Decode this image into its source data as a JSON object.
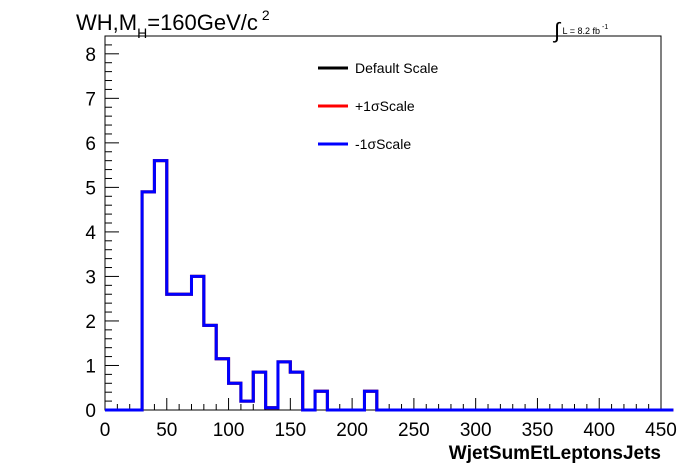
{
  "chart_data": {
    "type": "line",
    "title_parts": {
      "main": "WH,M",
      "sub": "H",
      "rest": "=160GeV/c",
      "sup": "2"
    },
    "lumi_label": {
      "integral": "∫",
      "text": "L = 8.2 fb",
      "sup": "-1"
    },
    "xlabel": "WjetSumEtLeptonsJets",
    "ylabel": "",
    "xlim": [
      0,
      450
    ],
    "ylim": [
      0,
      8.4
    ],
    "x_ticks": [
      "0",
      "50",
      "100",
      "150",
      "200",
      "250",
      "300",
      "350",
      "400",
      "450"
    ],
    "y_ticks": [
      "0",
      "1",
      "2",
      "3",
      "4",
      "5",
      "6",
      "7",
      "8"
    ],
    "bin_width": 10,
    "bin_edges_start": 0,
    "grid": false,
    "legend_position": "top-center",
    "series": [
      {
        "name": "Default Scale",
        "color": "#000000",
        "values": [
          0,
          0,
          0,
          4.9,
          5.6,
          2.6,
          2.6,
          3.0,
          1.9,
          1.15,
          0.6,
          0.2,
          0.85,
          0.05,
          1.08,
          0.85,
          0,
          0.42,
          0,
          0,
          0,
          0.42,
          0,
          0,
          0,
          0,
          0,
          0,
          0,
          0,
          0,
          0,
          0,
          0,
          0,
          0,
          0,
          0,
          0,
          0,
          0,
          0,
          0,
          0,
          0,
          0
        ]
      },
      {
        "name": "+1σScale",
        "color": "#ff0000",
        "values": [
          0,
          0,
          0,
          4.9,
          5.6,
          2.6,
          2.6,
          3.0,
          1.9,
          1.15,
          0.6,
          0.2,
          0.85,
          0.05,
          1.08,
          0.85,
          0,
          0.42,
          0,
          0,
          0,
          0.42,
          0,
          0,
          0,
          0,
          0,
          0,
          0,
          0,
          0,
          0,
          0,
          0,
          0,
          0,
          0,
          0,
          0,
          0,
          0,
          0,
          0,
          0,
          0,
          0
        ]
      },
      {
        "name": "-1σScale",
        "color": "#0000ff",
        "values": [
          0,
          0,
          0,
          4.9,
          5.6,
          2.6,
          2.6,
          3.0,
          1.9,
          1.15,
          0.6,
          0.2,
          0.85,
          0.05,
          1.08,
          0.85,
          0,
          0.42,
          0,
          0,
          0,
          0.42,
          0,
          0,
          0,
          0,
          0,
          0,
          0,
          0,
          0,
          0,
          0,
          0,
          0,
          0,
          0,
          0,
          0,
          0,
          0,
          0,
          0,
          0,
          0,
          0
        ]
      }
    ]
  }
}
